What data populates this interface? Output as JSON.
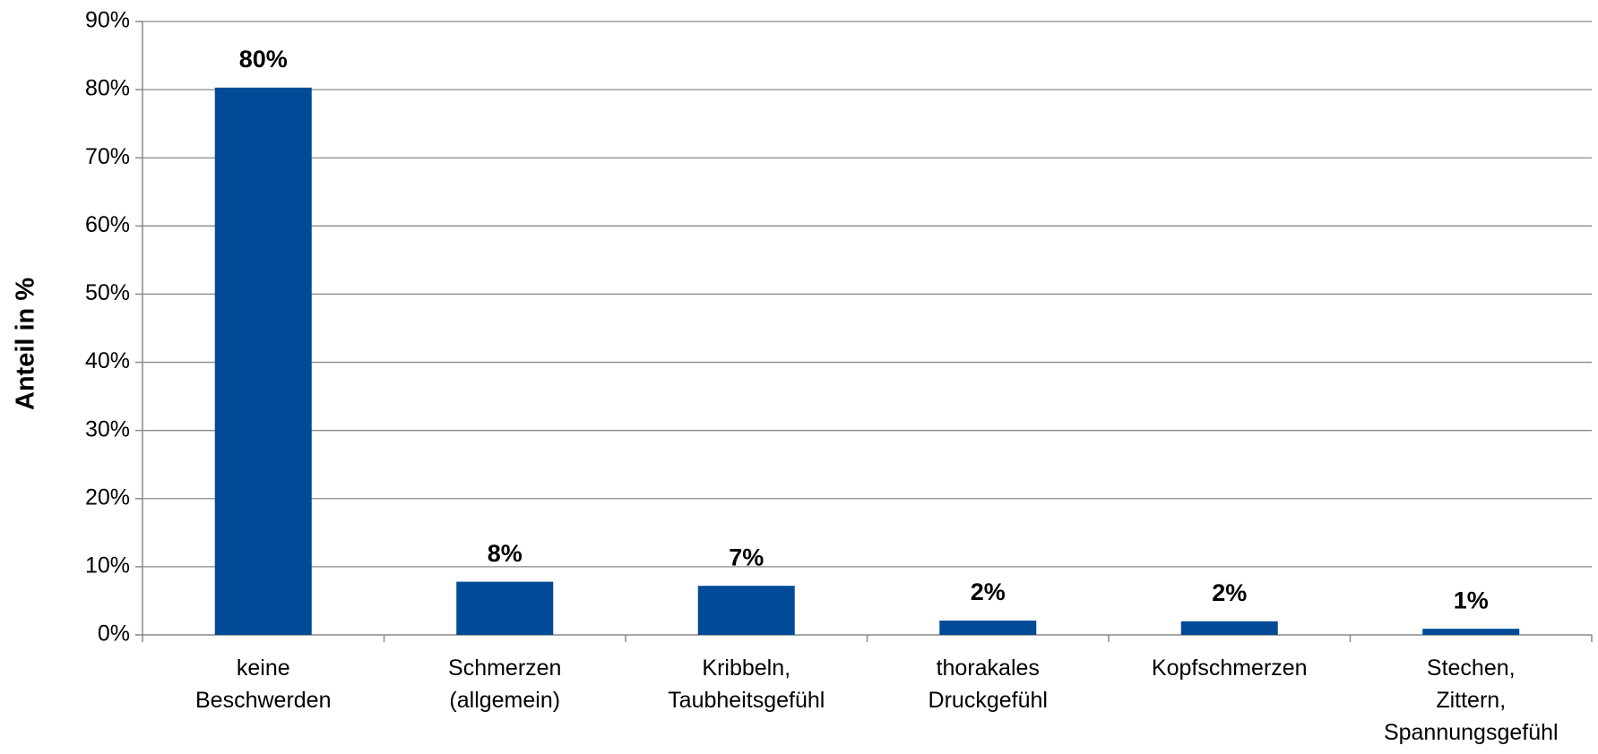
{
  "chart_data": {
    "type": "bar",
    "y_label": "Anteil in %",
    "categories": [
      [
        "keine",
        "Beschwerden"
      ],
      [
        "Schmerzen",
        "(allgemein)"
      ],
      [
        "Kribbeln,",
        "Taubheitsgefühl"
      ],
      [
        "thorakales",
        "Druckgefühl"
      ],
      [
        "Kopfschmerzen"
      ],
      [
        "Stechen,",
        "Zittern,",
        "Spannungsgefühl"
      ]
    ],
    "values": [
      80.3,
      7.8,
      7.2,
      2.1,
      2.0,
      0.9
    ],
    "value_labels": [
      "80%",
      "8%",
      "7%",
      "2%",
      "2%",
      "1%"
    ],
    "color": "#004a97",
    "ylim": [
      0,
      90
    ],
    "yticks": [
      {
        "value": 0,
        "label": "0%"
      },
      {
        "value": 10,
        "label": "10%"
      },
      {
        "value": 20,
        "label": "20%"
      },
      {
        "value": 30,
        "label": "30%"
      },
      {
        "value": 40,
        "label": "40%"
      },
      {
        "value": 50,
        "label": "50%"
      },
      {
        "value": 60,
        "label": "60%"
      },
      {
        "value": 70,
        "label": "70%"
      },
      {
        "value": 80,
        "label": "80%"
      },
      {
        "value": 90,
        "label": "90%"
      }
    ],
    "grid": true
  }
}
